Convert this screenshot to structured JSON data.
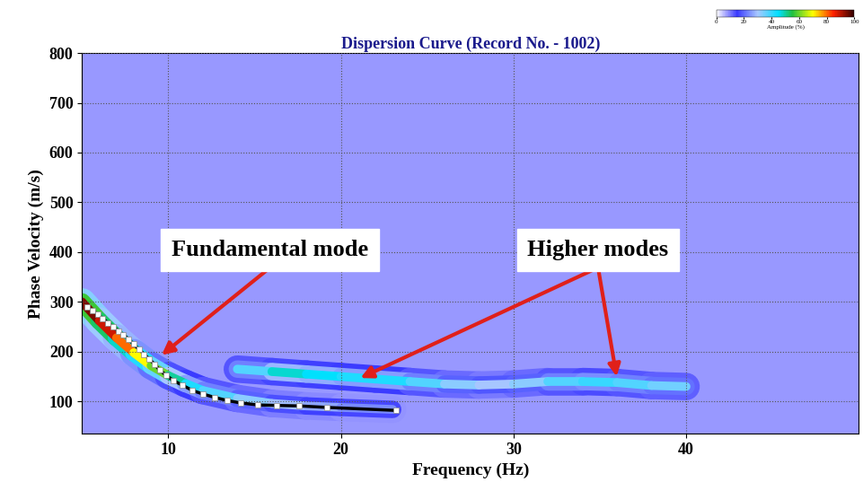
{
  "chart_data": {
    "type": "dispersion",
    "title": "Dispersion Curve (Record No. - 1002)",
    "x_label": "Frequency (Hz)",
    "y_label": "Phase Velocity (m/s)",
    "xlim": [
      5,
      50
    ],
    "ylim": [
      35,
      800
    ],
    "xticks": [
      10,
      20,
      30,
      40
    ],
    "yticks": [
      100,
      200,
      300,
      400,
      500,
      600,
      700,
      800
    ],
    "grid": true,
    "colorbar": {
      "label": "Amplitude (%)",
      "range": [
        0,
        100
      ],
      "ticks": [
        0,
        20,
        40,
        60,
        80,
        100
      ],
      "background_amplitude": 8
    },
    "ridges": [
      {
        "x": [
          5,
          6,
          7,
          8,
          9,
          10,
          11,
          12,
          14,
          16,
          18,
          20,
          23
        ],
        "values": [
          300,
          262,
          228,
          198,
          172,
          152,
          136,
          122,
          106,
          96,
          91,
          88,
          84
        ],
        "amplitude": [
          97,
          92,
          85,
          75,
          65,
          55,
          45,
          40,
          35,
          30,
          28,
          25,
          22
        ]
      },
      {
        "x": [
          14,
          16,
          18,
          20,
          22,
          24,
          26,
          28,
          30,
          32,
          34,
          36,
          38,
          40
        ],
        "values": [
          165,
          160,
          155,
          150,
          145,
          140,
          135,
          133,
          135,
          140,
          140,
          138,
          132,
          130
        ],
        "amplitude": [
          30,
          45,
          50,
          40,
          45,
          40,
          35,
          30,
          30,
          35,
          40,
          40,
          35,
          35
        ]
      }
    ],
    "series": [
      {
        "type": "line",
        "color": "#ffffff",
        "marker": "square",
        "line_style": "solid",
        "x": [
          5.3,
          5.6,
          5.9,
          6.2,
          6.5,
          6.8,
          7.1,
          7.4,
          7.7,
          8.0,
          8.3,
          8.6,
          8.9,
          9.2,
          9.5,
          9.9,
          10.3,
          10.8,
          11.4,
          12.0,
          12.7,
          13.4,
          14.2,
          15.2,
          16.3,
          17.6,
          19.2,
          23.2
        ],
        "values": [
          290,
          283,
          275,
          267,
          258,
          250,
          242,
          234,
          225,
          215,
          205,
          195,
          185,
          175,
          163,
          152,
          142,
          133,
          122,
          115,
          108,
          102,
          97,
          93,
          92,
          91,
          88,
          82
        ]
      }
    ],
    "annotations": [
      {
        "text": "Fundamental mode",
        "x": 15.9,
        "y": 404,
        "targets": [
          [
            9.5,
            190
          ]
        ]
      },
      {
        "text": "Higher modes",
        "x": 34.9,
        "y": 404,
        "targets": [
          [
            21,
            145
          ],
          [
            36,
            145
          ]
        ]
      }
    ]
  }
}
